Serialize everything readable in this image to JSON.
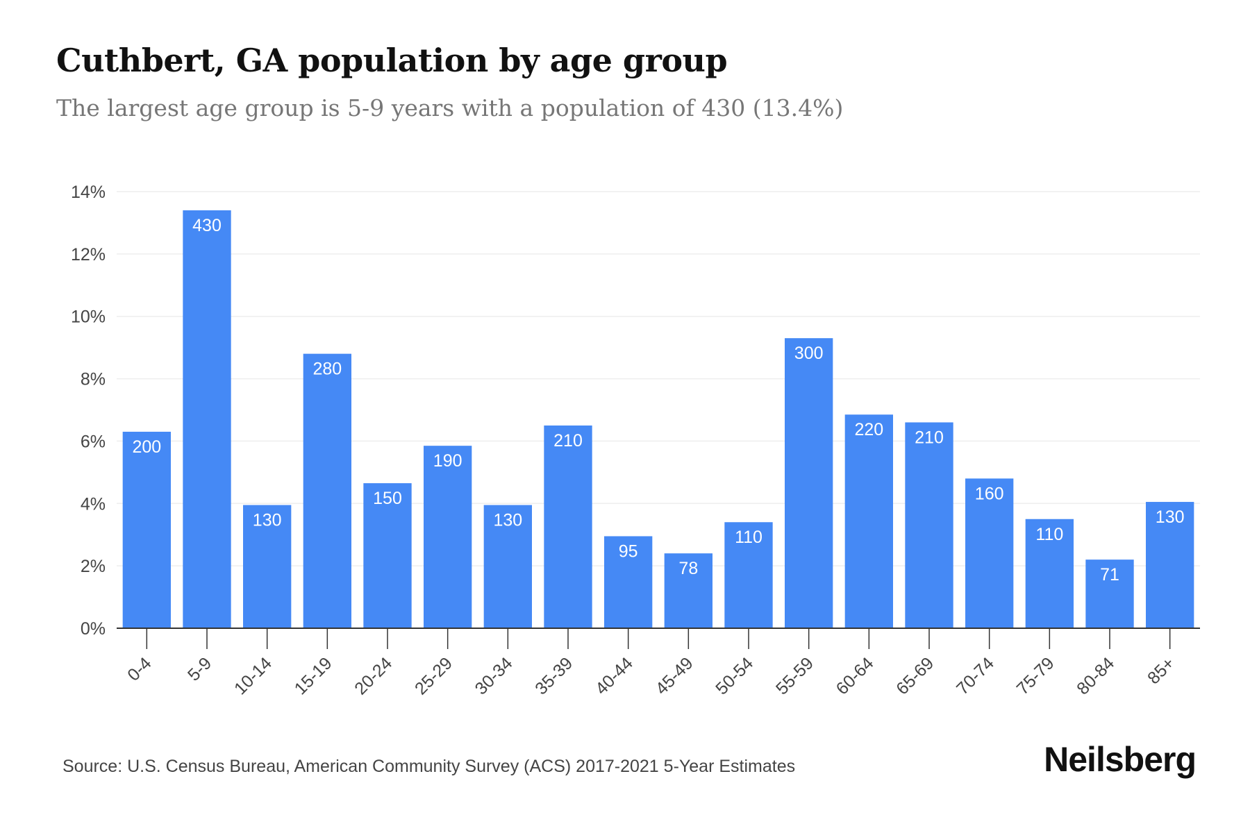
{
  "header": {
    "title": "Cuthbert, GA population by age group",
    "subtitle": "The largest age group is 5-9 years with a population of 430 (13.4%)"
  },
  "footer": {
    "source": "Source: U.S. Census Bureau, American Community Survey (ACS) 2017-2021 5-Year Estimates",
    "brand": "Neilsberg"
  },
  "colors": {
    "bar": "#4589f5",
    "bar_label": "#ffffff",
    "grid": "#eeeeee",
    "axis": "#333333",
    "tick_text": "#444444"
  },
  "chart_data": {
    "type": "bar",
    "categories": [
      "0-4",
      "5-9",
      "10-14",
      "15-19",
      "20-24",
      "25-29",
      "30-34",
      "35-39",
      "40-44",
      "45-49",
      "50-54",
      "55-59",
      "60-64",
      "65-69",
      "70-74",
      "75-79",
      "80-84",
      "85+"
    ],
    "series": [
      {
        "values": [
          6.3,
          13.4,
          3.95,
          8.8,
          4.65,
          5.85,
          3.95,
          6.5,
          2.95,
          2.4,
          3.4,
          9.3,
          6.85,
          6.6,
          4.8,
          3.5,
          2.2,
          4.05
        ],
        "labels": [
          "200",
          "430",
          "130",
          "280",
          "150",
          "190",
          "130",
          "210",
          "95",
          "78",
          "110",
          "300",
          "220",
          "210",
          "160",
          "110",
          "71",
          "130"
        ]
      }
    ],
    "ylim": [
      0,
      14
    ],
    "yticks": [
      0,
      2,
      4,
      6,
      8,
      10,
      12,
      14
    ],
    "ytick_suffix": "%",
    "grid": true,
    "legend": "none"
  }
}
